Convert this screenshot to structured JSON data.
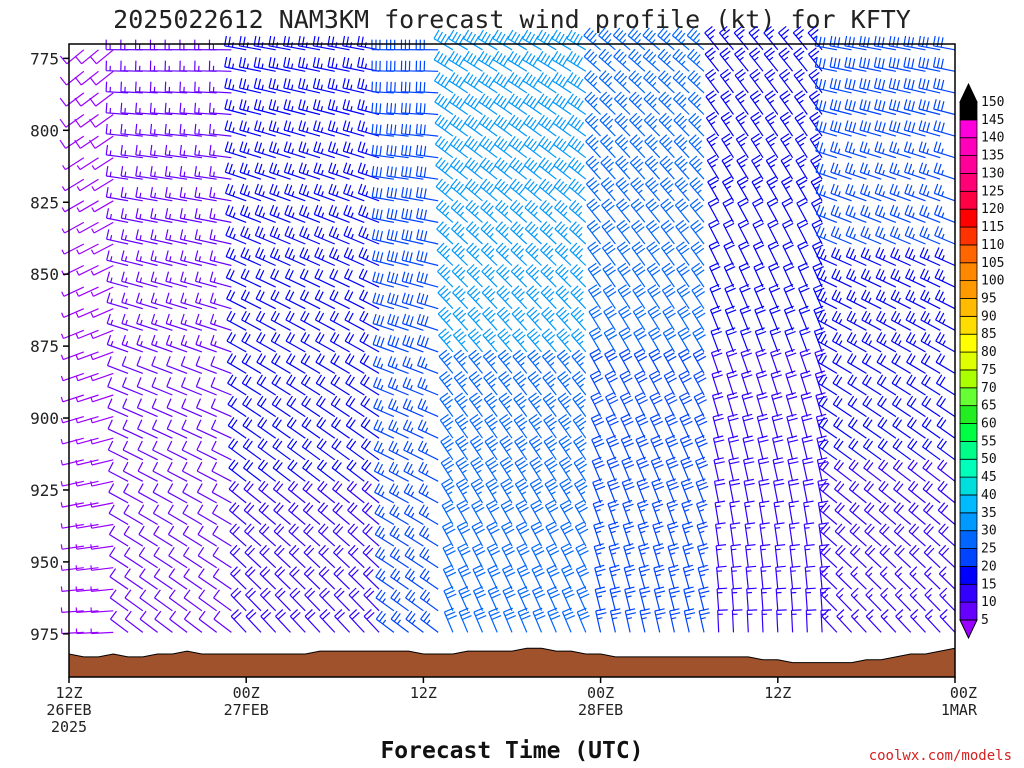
{
  "chart_data": {
    "type": "wind-barb-time-height",
    "title": "2025022612 NAM3KM forecast wind profile (kt) for KFTY",
    "xlabel": "Forecast Time (UTC)",
    "credit": "coolwx.com/models",
    "y_ticks": [
      775,
      800,
      825,
      850,
      875,
      900,
      925,
      950,
      975
    ],
    "y_range": [
      770,
      990
    ],
    "x_range_hours": [
      0,
      60
    ],
    "x_ticks": [
      {
        "hour": 0,
        "lines": [
          "12Z",
          "26FEB",
          "2025"
        ]
      },
      {
        "hour": 12,
        "lines": [
          "00Z",
          "27FEB"
        ]
      },
      {
        "hour": 24,
        "lines": [
          "12Z"
        ]
      },
      {
        "hour": 36,
        "lines": [
          "00Z",
          "28FEB"
        ]
      },
      {
        "hour": 48,
        "lines": [
          "12Z"
        ]
      },
      {
        "hour": 60,
        "lines": [
          "00Z",
          "1MAR"
        ]
      }
    ],
    "colorbar": {
      "unit": "kt",
      "levels": [
        5,
        10,
        15,
        20,
        25,
        30,
        35,
        40,
        45,
        50,
        55,
        60,
        65,
        70,
        75,
        80,
        85,
        90,
        95,
        100,
        105,
        110,
        115,
        120,
        125,
        130,
        135,
        140,
        145,
        150
      ],
      "colors": [
        "#9900ff",
        "#6600ff",
        "#3300ff",
        "#0000ff",
        "#0044ff",
        "#0066ff",
        "#0099ff",
        "#00bbff",
        "#00dddd",
        "#00ffbb",
        "#00ff88",
        "#00ff44",
        "#22ee22",
        "#66ff33",
        "#aaff00",
        "#ddff00",
        "#ffff00",
        "#ffdd00",
        "#ffbb00",
        "#ff9900",
        "#ff8800",
        "#ff6600",
        "#ff3300",
        "#ff0000",
        "#ff0044",
        "#ff0077",
        "#ff0099",
        "#ff00bb",
        "#ff00dd",
        "#000000"
      ]
    },
    "terrain_color": "#a0522d",
    "surface_pressure_hpa": [
      {
        "hour": 0,
        "p": 982
      },
      {
        "hour": 1,
        "p": 983
      },
      {
        "hour": 2,
        "p": 983
      },
      {
        "hour": 3,
        "p": 982
      },
      {
        "hour": 4,
        "p": 983
      },
      {
        "hour": 5,
        "p": 983
      },
      {
        "hour": 6,
        "p": 982
      },
      {
        "hour": 7,
        "p": 982
      },
      {
        "hour": 8,
        "p": 981
      },
      {
        "hour": 9,
        "p": 982
      },
      {
        "hour": 10,
        "p": 982
      },
      {
        "hour": 11,
        "p": 982
      },
      {
        "hour": 12,
        "p": 982
      },
      {
        "hour": 13,
        "p": 982
      },
      {
        "hour": 14,
        "p": 982
      },
      {
        "hour": 15,
        "p": 982
      },
      {
        "hour": 16,
        "p": 982
      },
      {
        "hour": 17,
        "p": 981
      },
      {
        "hour": 18,
        "p": 981
      },
      {
        "hour": 19,
        "p": 981
      },
      {
        "hour": 20,
        "p": 981
      },
      {
        "hour": 21,
        "p": 981
      },
      {
        "hour": 22,
        "p": 981
      },
      {
        "hour": 23,
        "p": 981
      },
      {
        "hour": 24,
        "p": 982
      },
      {
        "hour": 25,
        "p": 982
      },
      {
        "hour": 26,
        "p": 982
      },
      {
        "hour": 27,
        "p": 981
      },
      {
        "hour": 28,
        "p": 981
      },
      {
        "hour": 29,
        "p": 981
      },
      {
        "hour": 30,
        "p": 981
      },
      {
        "hour": 31,
        "p": 980
      },
      {
        "hour": 32,
        "p": 980
      },
      {
        "hour": 33,
        "p": 981
      },
      {
        "hour": 34,
        "p": 981
      },
      {
        "hour": 35,
        "p": 982
      },
      {
        "hour": 36,
        "p": 982
      },
      {
        "hour": 37,
        "p": 983
      },
      {
        "hour": 38,
        "p": 983
      },
      {
        "hour": 39,
        "p": 983
      },
      {
        "hour": 40,
        "p": 983
      },
      {
        "hour": 41,
        "p": 983
      },
      {
        "hour": 42,
        "p": 983
      },
      {
        "hour": 43,
        "p": 983
      },
      {
        "hour": 44,
        "p": 983
      },
      {
        "hour": 45,
        "p": 983
      },
      {
        "hour": 46,
        "p": 983
      },
      {
        "hour": 47,
        "p": 984
      },
      {
        "hour": 48,
        "p": 984
      },
      {
        "hour": 49,
        "p": 985
      },
      {
        "hour": 50,
        "p": 985
      },
      {
        "hour": 51,
        "p": 985
      },
      {
        "hour": 52,
        "p": 985
      },
      {
        "hour": 53,
        "p": 985
      },
      {
        "hour": 54,
        "p": 984
      },
      {
        "hour": 55,
        "p": 984
      },
      {
        "hour": 56,
        "p": 983
      },
      {
        "hour": 57,
        "p": 982
      },
      {
        "hour": 58,
        "p": 982
      },
      {
        "hour": 59,
        "p": 981
      },
      {
        "hour": 60,
        "p": 980
      }
    ],
    "wind_regimes": [
      {
        "hours": [
          0,
          4
        ],
        "dir_deg": 250,
        "speed_kt": [
          5,
          8
        ]
      },
      {
        "hours": [
          4,
          12
        ],
        "dir_deg": 290,
        "speed_kt": [
          10,
          15
        ]
      },
      {
        "hours": [
          12,
          22
        ],
        "dir_deg": 300,
        "speed_kt": [
          18,
          25
        ]
      },
      {
        "hours": [
          22,
          26
        ],
        "dir_deg": 290,
        "speed_kt": [
          25,
          30
        ]
      },
      {
        "hours": [
          26,
          36
        ],
        "dir_deg": 320,
        "speed_kt": [
          30,
          40
        ]
      },
      {
        "hours": [
          36,
          44
        ],
        "dir_deg": 330,
        "speed_kt": [
          25,
          35
        ]
      },
      {
        "hours": [
          44,
          52
        ],
        "dir_deg": 340,
        "speed_kt": [
          15,
          25
        ]
      },
      {
        "hours": [
          52,
          60
        ],
        "dir_deg": 300,
        "speed_kt": [
          15,
          30
        ]
      }
    ]
  }
}
